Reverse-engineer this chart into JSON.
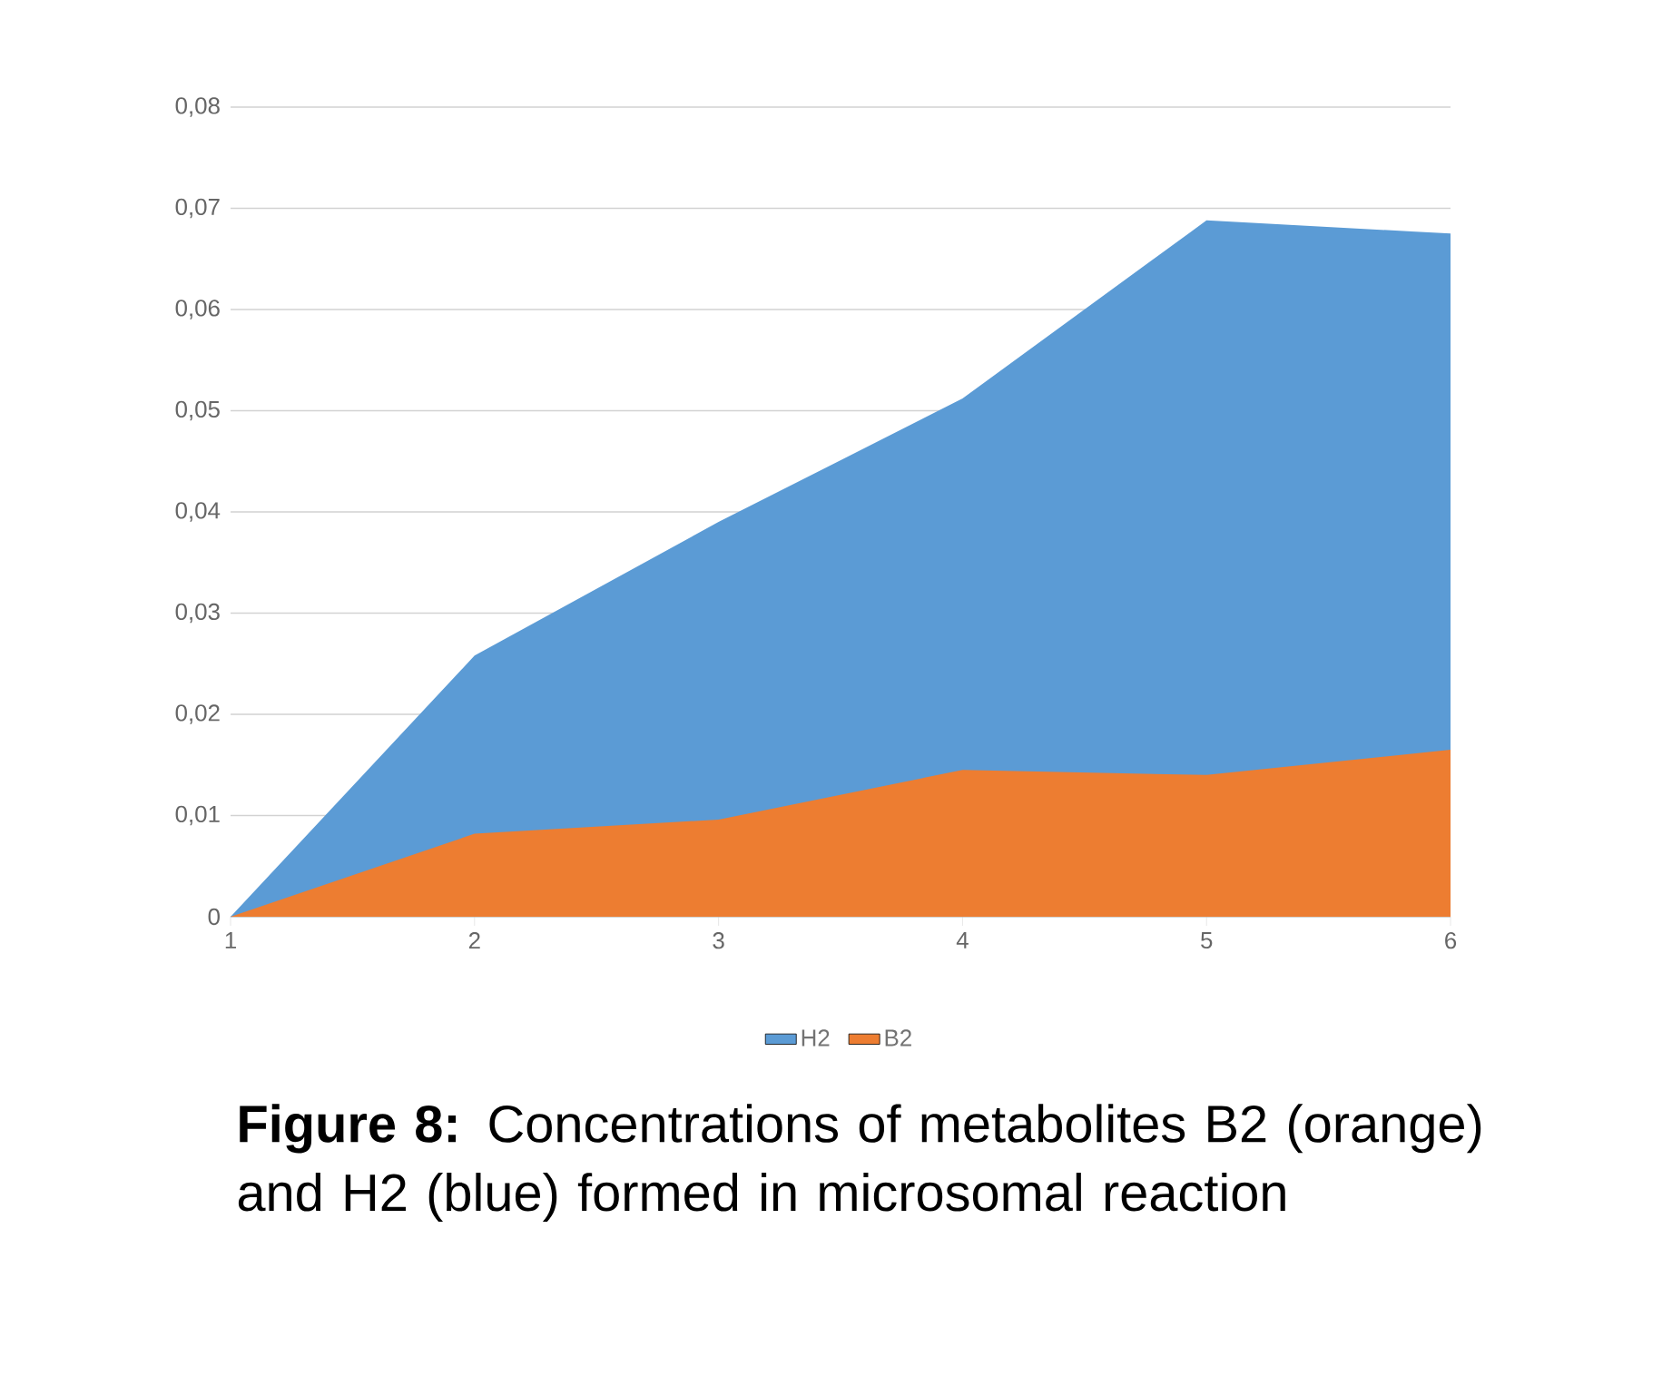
{
  "chart_data": {
    "type": "area",
    "categories": [
      "1",
      "2",
      "3",
      "4",
      "5",
      "6"
    ],
    "series": [
      {
        "name": "H2",
        "color": "#5b9bd5",
        "values": [
          0,
          0.0258,
          0.039,
          0.0512,
          0.0688,
          0.0675
        ]
      },
      {
        "name": "B2",
        "color": "#ed7d31",
        "values": [
          0,
          0.0082,
          0.0096,
          0.0145,
          0.014,
          0.0165
        ]
      }
    ],
    "ylim": [
      0,
      0.08
    ],
    "yticks": [
      0,
      {
        "value": 0.01,
        "label": "0,01"
      },
      {
        "value": 0.02,
        "label": "0,02"
      },
      {
        "value": 0.03,
        "label": "0,03"
      },
      {
        "value": 0.04,
        "label": "0,04"
      },
      {
        "value": 0.05,
        "label": "0,05"
      },
      {
        "value": 0.06,
        "label": "0,06"
      },
      {
        "value": 0.07,
        "label": "0,07"
      },
      {
        "value": 0.08,
        "label": "0,08"
      }
    ],
    "grid": "y",
    "legend": "bottom",
    "annotations": [
      "**Figure 8:** Concentrations of metabolites B2 (orange) and H2 (blue) formed in microsomal reaction"
    ]
  }
}
